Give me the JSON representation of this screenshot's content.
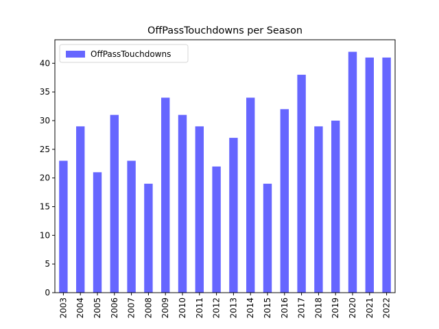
{
  "chart_data": {
    "type": "bar",
    "title": "OffPassTouchdowns per Season",
    "categories": [
      "2003",
      "2004",
      "2005",
      "2006",
      "2007",
      "2008",
      "2009",
      "2010",
      "2011",
      "2012",
      "2013",
      "2014",
      "2015",
      "2016",
      "2017",
      "2018",
      "2019",
      "2020",
      "2021",
      "2022"
    ],
    "series": [
      {
        "name": "OffPassTouchdowns",
        "color": "#6666ff",
        "values": [
          23,
          29,
          21,
          31,
          23,
          19,
          34,
          31,
          29,
          22,
          27,
          34,
          19,
          32,
          38,
          29,
          30,
          42,
          41,
          41
        ]
      }
    ],
    "ylim": [
      0,
      44.1
    ],
    "yticks": [
      0,
      5,
      10,
      15,
      20,
      25,
      30,
      35,
      40
    ],
    "legend": "upper left"
  }
}
